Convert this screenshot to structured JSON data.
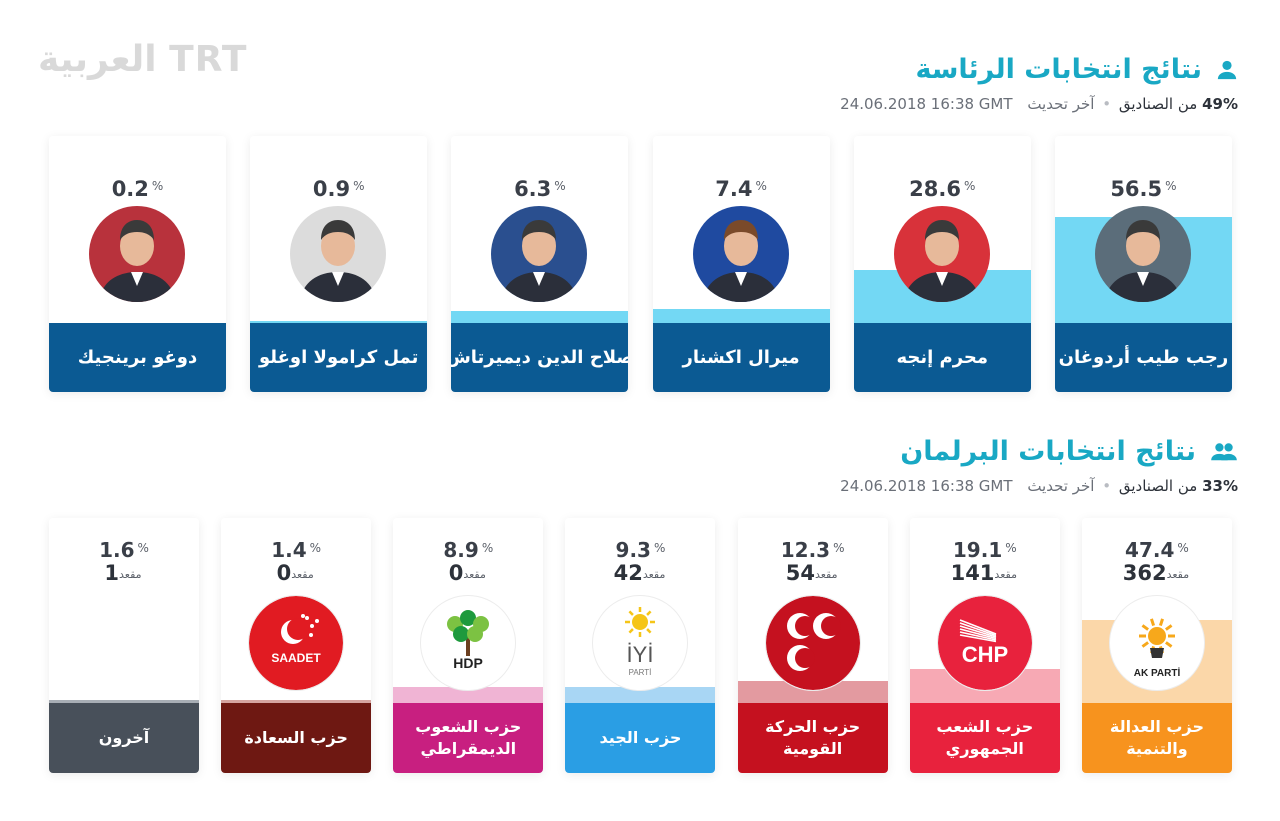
{
  "logo": {
    "text": "العربية TRT"
  },
  "president": {
    "title": "نتائج انتخابات الرئاسة",
    "meta": {
      "percent": "49%",
      "ballots_label": "من الصناديق",
      "updated_label": "آخر تحديث",
      "timestamp": "24.06.2018 16:38 GMT"
    },
    "candidates": [
      {
        "name": "رجب طيب أردوغان",
        "percent": "56.5",
        "percent_value": 56.5,
        "symbol": "%",
        "photo_bg": "#5b6d7a"
      },
      {
        "name": "محرم إنجه",
        "percent": "28.6",
        "percent_value": 28.6,
        "symbol": "%",
        "photo_bg": "#d8323a"
      },
      {
        "name": "ميرال اكشنار",
        "percent": "7.4",
        "percent_value": 7.4,
        "symbol": "%",
        "photo_bg": "#1f4aa0"
      },
      {
        "name": "صلاح الدين ديميرتاش",
        "percent": "6.3",
        "percent_value": 6.3,
        "symbol": "%",
        "photo_bg": "#2a4f8f"
      },
      {
        "name": "تمل كرامولا اوغلو",
        "percent": "0.9",
        "percent_value": 0.9,
        "symbol": "%",
        "photo_bg": "#dcdcdc"
      },
      {
        "name": "دوغو برينجيك",
        "percent": "0.2",
        "percent_value": 0.2,
        "symbol": "%",
        "photo_bg": "#b8323c"
      }
    ]
  },
  "parliament": {
    "title": "نتائج انتخابات البرلمان",
    "meta": {
      "percent": "33%",
      "ballots_label": "من الصناديق",
      "updated_label": "آخر تحديث",
      "timestamp": "24.06.2018 16:38 GMT"
    },
    "seats_label": "مقعد",
    "parties": [
      {
        "name": "حزب العدالة والتنمية",
        "percent": "47.4",
        "percent_value": 47.4,
        "seats": "362",
        "symbol": "%",
        "color": "#f7931e",
        "fill": "#fbd7a9",
        "logo": "akp",
        "logo_text": "AK PARTİ"
      },
      {
        "name": "حزب الشعب الجمهوري",
        "percent": "19.1",
        "percent_value": 19.1,
        "seats": "141",
        "symbol": "%",
        "color": "#e8223d",
        "fill": "#f7a9b4",
        "logo": "chp",
        "logo_text": "CHP"
      },
      {
        "name": "حزب الحركة القومية",
        "percent": "12.3",
        "percent_value": 12.3,
        "seats": "54",
        "symbol": "%",
        "color": "#c5111f",
        "fill": "#e39aa0",
        "logo": "mhp",
        "logo_text": ""
      },
      {
        "name": "حزب الجيد",
        "percent": "9.3",
        "percent_value": 9.3,
        "seats": "42",
        "symbol": "%",
        "color": "#2a9ee4",
        "fill": "#a8d6f4",
        "logo": "iyi",
        "logo_text": "İYİ",
        "logo_sub": "PARTİ"
      },
      {
        "name": "حزب الشعوب الديمقراطي",
        "percent": "8.9",
        "percent_value": 8.9,
        "seats": "0",
        "symbol": "%",
        "color": "#c81f80",
        "fill": "#f0b4d4",
        "logo": "hdp",
        "logo_text": "HDP"
      },
      {
        "name": "حزب السعادة",
        "percent": "1.4",
        "percent_value": 1.4,
        "seats": "0",
        "symbol": "%",
        "color": "#6e1812",
        "fill": "#d5a4a0",
        "logo": "saadet",
        "logo_text": "SAADET"
      },
      {
        "name": "آخرون",
        "percent": "1.6",
        "percent_value": 1.6,
        "seats": "1",
        "symbol": "%",
        "color": "#48505a",
        "fill": "#a8aeb5",
        "logo": "none",
        "logo_text": ""
      }
    ]
  },
  "colors": {
    "accent": "#19a8c4",
    "pres_name_bg": "#0b5a93",
    "pres_fill": "#73d8f4"
  }
}
